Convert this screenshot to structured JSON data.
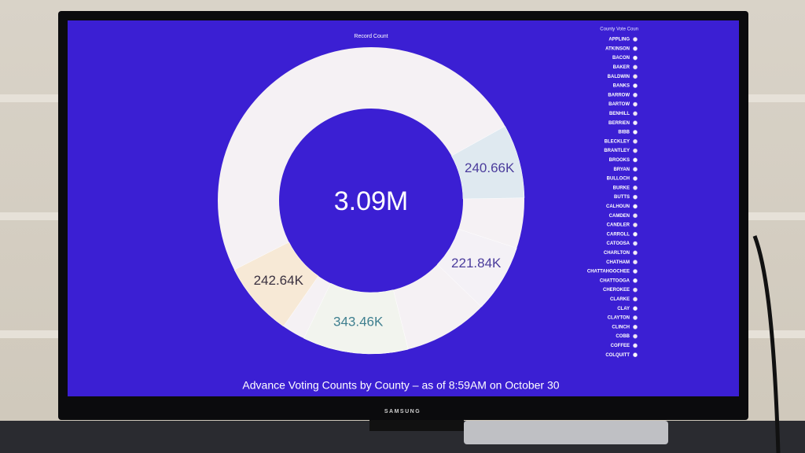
{
  "chart_data": {
    "type": "donut",
    "title": "Record Count",
    "caption": "Advance Voting Counts by County – as of 8:59AM on October 30",
    "total": {
      "value": 3090000,
      "label": "3.09M"
    },
    "values": [
      240660,
      221840,
      343460,
      242640
    ],
    "value_labels": [
      "240.66K",
      "221.84K",
      "343.46K",
      "242.64K"
    ],
    "colors": [
      "#dfe9f0",
      "#f4f1f6",
      "#f2f4ee",
      "#f7e9d6"
    ],
    "legend": {
      "title": "County Vote Coun",
      "position": "right",
      "items": [
        "APPLING",
        "ATKINSON",
        "BACON",
        "BAKER",
        "BALDWIN",
        "BANKS",
        "BARROW",
        "BARTOW",
        "BENHILL",
        "BERRIEN",
        "BIBB",
        "BLECKLEY",
        "BRANTLEY",
        "BROOKS",
        "BRYAN",
        "BULLOCH",
        "BURKE",
        "BUTTS",
        "CALHOUN",
        "CAMDEN",
        "CANDLER",
        "CARROLL",
        "CATOOSA",
        "CHARLTON",
        "CHATHAM",
        "CHATTAHOOCHEE",
        "CHATTOOGA",
        "CHEROKEE",
        "CLARKE",
        "CLAY",
        "CLAYTON",
        "CLINCH",
        "COBB",
        "COFFEE",
        "COLQUITT"
      ]
    },
    "brand": "SAMSUNG"
  }
}
